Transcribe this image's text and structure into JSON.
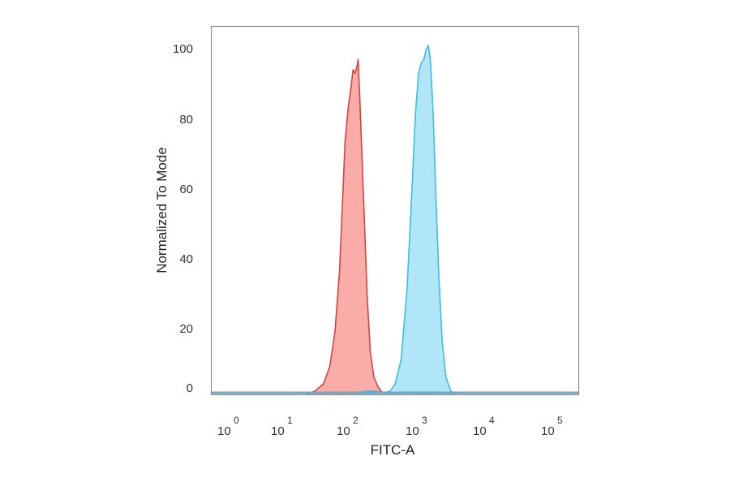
{
  "chart_data": {
    "type": "area",
    "title": "",
    "xlabel": "FITC-A",
    "ylabel": "Normalized To Mode",
    "xscale": "log",
    "xlim": [
      1,
      100000
    ],
    "ylim": [
      0,
      106
    ],
    "x_ticks": [
      {
        "base": "10",
        "exp": "0",
        "value": 1
      },
      {
        "base": "10",
        "exp": "1",
        "value": 10
      },
      {
        "base": "10",
        "exp": "2",
        "value": 100
      },
      {
        "base": "10",
        "exp": "3",
        "value": 1000
      },
      {
        "base": "10",
        "exp": "4",
        "value": 10000
      },
      {
        "base": "10",
        "exp": "5",
        "value": 100000
      }
    ],
    "y_ticks": [
      "0",
      "20",
      "40",
      "60",
      "80",
      "100"
    ],
    "grid": false,
    "legend": "none",
    "series": [
      {
        "color": "#d9423f",
        "fill": "#f9a3a0",
        "points": [
          [
            22,
            0
          ],
          [
            30,
            1
          ],
          [
            40,
            3
          ],
          [
            50,
            8
          ],
          [
            60,
            18
          ],
          [
            70,
            35
          ],
          [
            78,
            55
          ],
          [
            85,
            72
          ],
          [
            95,
            82
          ],
          [
            105,
            88
          ],
          [
            112,
            93
          ],
          [
            120,
            92
          ],
          [
            128,
            94
          ],
          [
            133,
            96
          ],
          [
            140,
            86
          ],
          [
            150,
            70
          ],
          [
            165,
            48
          ],
          [
            180,
            28
          ],
          [
            200,
            12
          ],
          [
            225,
            5
          ],
          [
            260,
            2
          ],
          [
            300,
            0.5
          ],
          [
            340,
            0
          ]
        ]
      },
      {
        "color": "#3cbde3",
        "fill": "#a9e3f7",
        "points": [
          [
            120,
            0
          ],
          [
            150,
            0.8
          ],
          [
            200,
            1
          ],
          [
            260,
            0.8
          ],
          [
            330,
            0.5
          ],
          [
            390,
            1
          ],
          [
            460,
            3
          ],
          [
            560,
            10
          ],
          [
            680,
            30
          ],
          [
            800,
            58
          ],
          [
            900,
            80
          ],
          [
            1000,
            92
          ],
          [
            1100,
            95
          ],
          [
            1200,
            96
          ],
          [
            1300,
            99
          ],
          [
            1400,
            100
          ],
          [
            1500,
            96
          ],
          [
            1650,
            80
          ],
          [
            1800,
            58
          ],
          [
            2000,
            34
          ],
          [
            2250,
            15
          ],
          [
            2550,
            5
          ],
          [
            3000,
            1
          ],
          [
            3500,
            0
          ]
        ]
      }
    ]
  }
}
